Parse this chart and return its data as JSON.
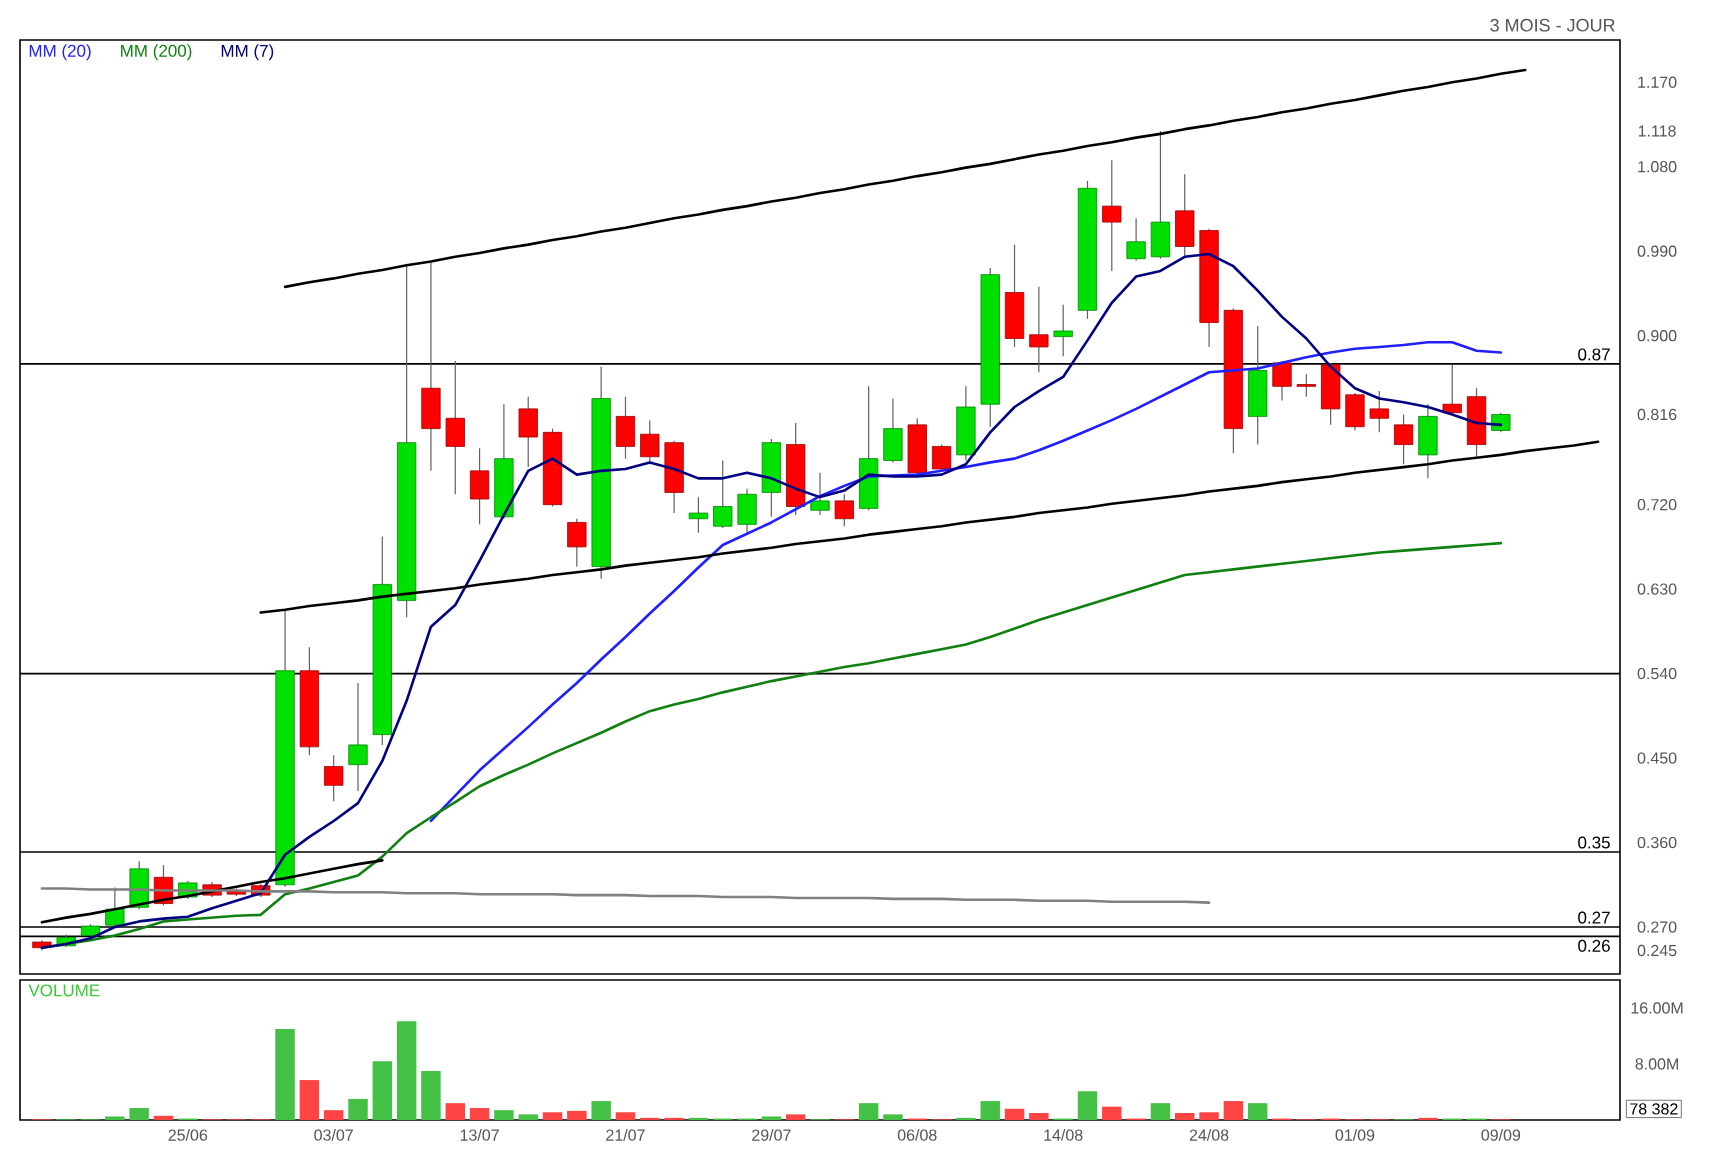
{
  "chart_data": [
    {
      "type": "candlestick",
      "subtitle": "3 MOIS - JOUR",
      "categories": [
        null,
        null,
        null,
        null,
        null,
        null,
        null,
        null,
        null,
        null,
        null,
        null,
        null,
        null,
        null,
        null,
        null,
        null,
        null,
        null,
        null,
        null,
        null,
        null,
        null,
        null,
        null,
        null,
        null,
        null,
        null,
        null,
        null,
        null,
        null,
        null,
        null,
        null,
        null,
        null,
        null,
        null,
        null,
        null,
        null,
        null,
        null,
        null,
        null,
        null,
        null,
        null,
        null,
        null,
        null,
        null,
        null,
        null,
        null,
        null,
        null,
        null,
        null,
        null,
        null
      ],
      "ohlc": [
        [
          0.254,
          0.256,
          0.245,
          0.248
        ],
        [
          0.25,
          0.262,
          0.249,
          0.259
        ],
        [
          0.261,
          0.273,
          0.26,
          0.271
        ],
        [
          0.272,
          0.312,
          0.27,
          0.289
        ],
        [
          0.291,
          0.34,
          0.289,
          0.332
        ],
        [
          0.323,
          0.336,
          0.293,
          0.295
        ],
        [
          0.302,
          0.319,
          0.3,
          0.317
        ],
        [
          0.315,
          0.318,
          0.302,
          0.304
        ],
        [
          0.309,
          0.311,
          0.303,
          0.305
        ],
        [
          0.314,
          0.316,
          0.302,
          0.304
        ],
        [
          0.315,
          0.607,
          0.313,
          0.543
        ],
        [
          0.543,
          0.568,
          0.453,
          0.462
        ],
        [
          0.441,
          0.453,
          0.404,
          0.421
        ],
        [
          0.443,
          0.53,
          0.415,
          0.464
        ],
        [
          0.475,
          0.686,
          0.464,
          0.635
        ],
        [
          0.618,
          0.974,
          0.6,
          0.786
        ],
        [
          0.844,
          0.978,
          0.756,
          0.801
        ],
        [
          0.812,
          0.873,
          0.731,
          0.782
        ],
        [
          0.756,
          0.78,
          0.699,
          0.726
        ],
        [
          0.707,
          0.827,
          0.705,
          0.769
        ],
        [
          0.822,
          0.835,
          0.76,
          0.792
        ],
        [
          0.797,
          0.801,
          0.718,
          0.72
        ],
        [
          0.701,
          0.705,
          0.654,
          0.675
        ],
        [
          0.654,
          0.867,
          0.641,
          0.833
        ],
        [
          0.814,
          0.835,
          0.769,
          0.782
        ],
        [
          0.795,
          0.81,
          0.763,
          0.771
        ],
        [
          0.786,
          0.788,
          0.711,
          0.733
        ],
        [
          0.705,
          0.728,
          0.69,
          0.711
        ],
        [
          0.697,
          0.767,
          0.695,
          0.718
        ],
        [
          0.699,
          0.737,
          0.688,
          0.731
        ],
        [
          0.733,
          0.79,
          0.707,
          0.786
        ],
        [
          0.784,
          0.807,
          0.709,
          0.718
        ],
        [
          0.714,
          0.754,
          0.709,
          0.724
        ],
        [
          0.724,
          0.731,
          0.697,
          0.705
        ],
        [
          0.716,
          0.846,
          0.714,
          0.769
        ],
        [
          0.767,
          0.833,
          0.765,
          0.801
        ],
        [
          0.805,
          0.812,
          0.752,
          0.754
        ],
        [
          0.782,
          0.784,
          0.756,
          0.758
        ],
        [
          0.773,
          0.846,
          0.767,
          0.824
        ],
        [
          0.827,
          0.972,
          0.803,
          0.965
        ],
        [
          0.946,
          0.997,
          0.888,
          0.897
        ],
        [
          0.901,
          0.952,
          0.861,
          0.888
        ],
        [
          0.899,
          0.933,
          0.878,
          0.905
        ],
        [
          0.927,
          1.065,
          0.918,
          1.057
        ],
        [
          1.038,
          1.087,
          0.969,
          1.021
        ],
        [
          0.982,
          1.025,
          0.98,
          1.0
        ],
        [
          0.984,
          1.118,
          0.982,
          1.021
        ],
        [
          1.033,
          1.072,
          0.984,
          0.995
        ],
        [
          1.012,
          1.014,
          0.888,
          0.914
        ],
        [
          0.927,
          0.929,
          0.775,
          0.801
        ],
        [
          0.814,
          0.91,
          0.784,
          0.863
        ],
        [
          0.871,
          0.873,
          0.831,
          0.846
        ],
        [
          0.848,
          0.859,
          0.835,
          0.846
        ],
        [
          0.869,
          0.871,
          0.805,
          0.822
        ],
        [
          0.837,
          0.839,
          0.799,
          0.803
        ],
        [
          0.822,
          0.841,
          0.797,
          0.812
        ],
        [
          0.805,
          0.816,
          0.763,
          0.784
        ],
        [
          0.773,
          0.827,
          0.748,
          0.814
        ],
        [
          0.827,
          0.869,
          0.816,
          0.818
        ],
        [
          0.835,
          0.844,
          0.769,
          0.784
        ],
        [
          0.799,
          0.818,
          0.797,
          0.816
        ],
        null,
        null,
        null,
        null
      ],
      "colors": [
        "#ff0000",
        "#00e000",
        "#00e000",
        "#00e000",
        "#00e000",
        "#ff0000",
        "#00e000",
        "#ff0000",
        "#ff0000",
        "#ff0000",
        "#00e000",
        "#ff0000",
        "#ff0000",
        "#00e000",
        "#00e000",
        "#00e000",
        "#ff0000",
        "#ff0000",
        "#ff0000",
        "#00e000",
        "#ff0000",
        "#ff0000",
        "#ff0000",
        "#00e000",
        "#ff0000",
        "#ff0000",
        "#ff0000",
        "#00e000",
        "#00e000",
        "#00e000",
        "#00e000",
        "#ff0000",
        "#00e000",
        "#ff0000",
        "#00e000",
        "#00e000",
        "#ff0000",
        "#ff0000",
        "#00e000",
        "#00e000",
        "#ff0000",
        "#ff0000",
        "#00e000",
        "#00e000",
        "#ff0000",
        "#00e000",
        "#00e000",
        "#ff0000",
        "#ff0000",
        "#ff0000",
        "#00e000",
        "#ff0000",
        "#ff0000",
        "#ff0000",
        "#ff0000",
        "#ff0000",
        "#ff0000",
        "#00e000",
        "#ff0000",
        "#ff0000",
        "#00e000",
        null,
        null,
        null,
        null
      ],
      "series": [
        {
          "name": "MM (20)",
          "type": "line",
          "color": "#2020ff",
          "values": [
            null,
            null,
            null,
            null,
            null,
            null,
            null,
            null,
            null,
            null,
            null,
            null,
            null,
            null,
            null,
            null,
            0.383,
            0.41,
            0.437,
            0.46,
            0.483,
            0.507,
            0.53,
            0.555,
            0.579,
            0.604,
            0.628,
            0.653,
            0.677,
            0.689,
            0.701,
            0.715,
            0.729,
            0.74,
            0.75,
            0.751,
            0.752,
            0.756,
            0.76,
            0.765,
            0.769,
            0.778,
            0.788,
            0.799,
            0.81,
            0.822,
            0.835,
            0.848,
            0.861,
            0.863,
            0.865,
            0.871,
            0.877,
            0.882,
            0.886,
            0.888,
            0.89,
            0.893,
            0.893,
            0.884,
            0.882,
            null,
            null,
            null,
            null
          ]
        },
        {
          "name": "MM (200)",
          "type": "line",
          "color": "#108010",
          "values": [
            0.248,
            0.252,
            0.256,
            0.261,
            0.268,
            0.276,
            0.278,
            0.28,
            0.282,
            0.283,
            0.305,
            0.311,
            0.318,
            0.325,
            0.345,
            0.37,
            0.387,
            0.403,
            0.42,
            0.432,
            0.443,
            0.455,
            0.466,
            0.477,
            0.489,
            0.5,
            0.507,
            0.513,
            0.52,
            0.526,
            0.532,
            0.537,
            0.542,
            0.547,
            0.551,
            0.556,
            0.561,
            0.566,
            0.571,
            0.579,
            0.588,
            0.597,
            0.605,
            0.613,
            0.621,
            0.629,
            0.637,
            0.645,
            0.648,
            0.651,
            0.654,
            0.657,
            0.66,
            0.663,
            0.666,
            0.669,
            0.671,
            0.673,
            0.675,
            0.677,
            0.679,
            null,
            null,
            null,
            null
          ]
        },
        {
          "name": "MM (7)",
          "type": "line",
          "color": "#000080",
          "values": [
            0.248,
            0.252,
            0.258,
            0.27,
            0.276,
            0.279,
            0.281,
            0.29,
            0.298,
            0.306,
            0.347,
            0.366,
            0.383,
            0.402,
            0.447,
            0.511,
            0.59,
            0.613,
            0.66,
            0.709,
            0.756,
            0.769,
            0.752,
            0.756,
            0.758,
            0.765,
            0.758,
            0.748,
            0.748,
            0.754,
            0.748,
            0.737,
            0.728,
            0.735,
            0.752,
            0.75,
            0.75,
            0.752,
            0.763,
            0.797,
            0.824,
            0.841,
            0.856,
            0.895,
            0.935,
            0.963,
            0.969,
            0.984,
            0.987,
            0.974,
            0.948,
            0.92,
            0.897,
            0.867,
            0.844,
            0.833,
            0.829,
            0.824,
            0.816,
            0.807,
            0.805,
            null,
            null,
            null,
            null
          ]
        },
        {
          "type": "line",
          "color": "#000000",
          "values": [
            null,
            null,
            null,
            null,
            null,
            null,
            null,
            null,
            null,
            null,
            0.952,
            0.957,
            0.961,
            0.966,
            0.97,
            0.975,
            0.979,
            0.984,
            0.988,
            0.993,
            0.997,
            1.002,
            1.006,
            1.011,
            1.015,
            1.02,
            1.025,
            1.029,
            1.034,
            1.038,
            1.043,
            1.047,
            1.052,
            1.056,
            1.061,
            1.065,
            1.07,
            1.074,
            1.079,
            1.083,
            1.088,
            1.093,
            1.097,
            1.102,
            1.106,
            1.111,
            1.115,
            1.12,
            1.124,
            1.129,
            1.133,
            1.138,
            1.142,
            1.147,
            1.151,
            1.156,
            1.161,
            1.165,
            1.17,
            1.174,
            1.179,
            1.183,
            null,
            null,
            null
          ]
        },
        {
          "type": "line",
          "color": "#000000",
          "values": [
            null,
            null,
            null,
            null,
            null,
            null,
            null,
            null,
            null,
            0.605,
            0.608,
            0.612,
            0.615,
            0.618,
            0.622,
            0.625,
            0.628,
            0.631,
            0.635,
            0.638,
            0.641,
            0.645,
            0.648,
            0.651,
            0.655,
            0.658,
            0.661,
            0.664,
            0.668,
            0.671,
            0.674,
            0.678,
            0.681,
            0.684,
            0.688,
            0.691,
            0.694,
            0.697,
            0.701,
            0.704,
            0.707,
            0.711,
            0.714,
            0.717,
            0.721,
            0.724,
            0.727,
            0.73,
            0.734,
            0.737,
            0.74,
            0.744,
            0.747,
            0.75,
            0.754,
            0.757,
            0.76,
            0.763,
            0.767,
            0.77,
            0.773,
            0.777,
            0.78,
            0.783,
            0.787
          ]
        },
        {
          "type": "line",
          "color": "#000000",
          "values": [
            0.275,
            0.28,
            0.284,
            0.289,
            0.294,
            0.299,
            0.303,
            0.308,
            0.313,
            0.318,
            0.322,
            0.327,
            0.332,
            0.337,
            0.341,
            null,
            null,
            null,
            null,
            null,
            null,
            null,
            null,
            null,
            null,
            null,
            null,
            null,
            null,
            null,
            null,
            null,
            null,
            null,
            null,
            null,
            null,
            null,
            null,
            null,
            null,
            null,
            null,
            null,
            null,
            null,
            null,
            null,
            null,
            null,
            null,
            null,
            null,
            null,
            null,
            null,
            null,
            null,
            null,
            null,
            null,
            null,
            null,
            null,
            null
          ]
        },
        {
          "type": "line",
          "color": "#808080",
          "values": [
            0.311,
            0.311,
            0.31,
            0.31,
            0.31,
            0.309,
            0.309,
            0.309,
            0.309,
            0.308,
            0.308,
            0.308,
            0.307,
            0.307,
            0.307,
            0.306,
            0.306,
            0.306,
            0.305,
            0.305,
            0.305,
            0.305,
            0.304,
            0.304,
            0.304,
            0.303,
            0.303,
            0.303,
            0.302,
            0.302,
            0.302,
            0.301,
            0.301,
            0.301,
            0.301,
            0.3,
            0.3,
            0.3,
            0.299,
            0.299,
            0.299,
            0.298,
            0.298,
            0.298,
            0.297,
            0.297,
            0.297,
            0.297,
            0.296,
            null,
            null,
            null,
            null,
            null,
            null,
            null,
            null,
            null,
            null,
            null,
            null,
            null,
            null,
            null,
            null
          ]
        }
      ],
      "ref_lines": [
        {
          "axis": "y",
          "value": 0.87,
          "label": "0.87"
        },
        {
          "axis": "y",
          "value": 0.35,
          "label": "0.35"
        },
        {
          "axis": "y",
          "value": 0.54
        },
        {
          "axis": "y",
          "value": 0.27,
          "label": "0.27"
        },
        {
          "axis": "y",
          "value": 0.26,
          "label": "0.26"
        }
      ],
      "ylim": [
        0.22,
        1.215
      ],
      "yticks": [
        {
          "value": 1.17,
          "label": "1.170"
        },
        1.118,
        {
          "value": 1.08,
          "label": "1.080"
        },
        {
          "value": 0.99,
          "label": "0.990"
        },
        {
          "value": 0.9,
          "label": "0.900"
        },
        0.816,
        {
          "value": 0.72,
          "label": "0.720"
        },
        {
          "value": 0.63,
          "label": "0.630"
        },
        {
          "value": 0.54,
          "label": "0.540"
        },
        {
          "value": 0.45,
          "label": "0.450"
        },
        {
          "value": 0.36,
          "label": "0.360"
        },
        {
          "value": 0.27,
          "label": "0.270"
        },
        0.245
      ],
      "tick_labels": "y",
      "legend": "top left"
    },
    {
      "type": "bar",
      "title": "VOLUME",
      "categories": [
        null,
        null,
        null,
        null,
        null,
        null,
        "25/06",
        null,
        null,
        null,
        null,
        null,
        "03/07",
        null,
        null,
        null,
        null,
        null,
        "13/07",
        null,
        null,
        null,
        null,
        null,
        "21/07",
        null,
        null,
        null,
        null,
        null,
        "29/07",
        null,
        null,
        null,
        null,
        null,
        "06/08",
        null,
        null,
        null,
        null,
        null,
        "14/08",
        null,
        null,
        null,
        null,
        null,
        "24/08",
        null,
        null,
        null,
        null,
        null,
        "01/09",
        null,
        null,
        null,
        null,
        null,
        "09/09",
        null,
        null,
        null,
        null
      ],
      "values": [
        0.1,
        0.1,
        0.1,
        0.5,
        1.7,
        0.6,
        0.2,
        0.1,
        0.1,
        0.1,
        13.0,
        5.7,
        1.4,
        3.0,
        8.4,
        14.1,
        7.0,
        2.4,
        1.7,
        1.4,
        0.8,
        1.1,
        1.3,
        2.7,
        1.1,
        0.3,
        0.3,
        0.3,
        0.2,
        0.2,
        0.5,
        0.8,
        0.1,
        0.1,
        2.4,
        0.8,
        0.2,
        0.1,
        0.3,
        2.7,
        1.6,
        1.0,
        0.2,
        4.1,
        1.9,
        0.2,
        2.4,
        1.0,
        1.1,
        2.7,
        2.4,
        0.2,
        0.1,
        0.2,
        0.1,
        0.1,
        0.1,
        0.3,
        0.2,
        0.2,
        0.1,
        null,
        null,
        null,
        null
      ],
      "colors": [
        "#ff4444",
        "#44c044",
        "#44c044",
        "#44c044",
        "#44c044",
        "#ff4444",
        "#44c044",
        "#ff4444",
        "#ff4444",
        "#ff4444",
        "#44c044",
        "#ff4444",
        "#ff4444",
        "#44c044",
        "#44c044",
        "#44c044",
        "#44c044",
        "#ff4444",
        "#ff4444",
        "#44c044",
        "#44c044",
        "#ff4444",
        "#ff4444",
        "#44c044",
        "#ff4444",
        "#ff4444",
        "#ff4444",
        "#44c044",
        "#44c044",
        "#44c044",
        "#44c044",
        "#ff4444",
        "#44c044",
        "#ff4444",
        "#44c044",
        "#44c044",
        "#ff4444",
        "#ff4444",
        "#44c044",
        "#44c044",
        "#ff4444",
        "#ff4444",
        "#44c044",
        "#44c044",
        "#ff4444",
        "#ff4444",
        "#44c044",
        "#ff4444",
        "#ff4444",
        "#ff4444",
        "#44c044",
        "#ff4444",
        "#ff4444",
        "#ff4444",
        "#ff4444",
        "#ff4444",
        "#44c044",
        "#ff4444",
        "#44c044",
        "#44c044",
        "#ff4444",
        null,
        null,
        null,
        null
      ],
      "annotations": [
        "78 382"
      ],
      "ylim": [
        0,
        20
      ],
      "yticks": [
        {
          "value": 8,
          "label": "8.00M"
        },
        {
          "value": 16,
          "label": "16.00M"
        }
      ]
    }
  ]
}
